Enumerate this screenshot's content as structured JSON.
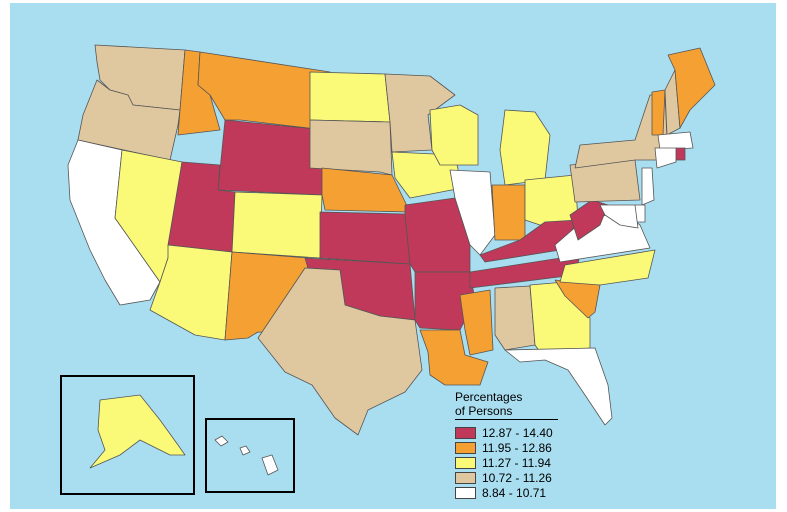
{
  "legend": {
    "title_line1": "Percentages",
    "title_line2": "of Persons",
    "classes": [
      {
        "label": "12.87 - 14.40",
        "color": "#c0395a"
      },
      {
        "label": "11.95 - 12.86",
        "color": "#f5a033"
      },
      {
        "label": "11.27 - 11.94",
        "color": "#fafa78"
      },
      {
        "label": "10.72 - 11.26",
        "color": "#dfc8a0"
      },
      {
        "label": "8.84 - 10.71",
        "color": "#ffffff"
      }
    ]
  },
  "colors": {
    "water": "#a9def0",
    "border": "#555555"
  },
  "states": [
    {
      "id": "WA",
      "class": 3
    },
    {
      "id": "OR",
      "class": 3
    },
    {
      "id": "CA",
      "class": 4
    },
    {
      "id": "NV",
      "class": 2
    },
    {
      "id": "ID",
      "class": 1
    },
    {
      "id": "MT",
      "class": 1
    },
    {
      "id": "WY",
      "class": 0
    },
    {
      "id": "UT",
      "class": 0
    },
    {
      "id": "AZ",
      "class": 2
    },
    {
      "id": "CO",
      "class": 2
    },
    {
      "id": "NM",
      "class": 1
    },
    {
      "id": "ND",
      "class": 2
    },
    {
      "id": "SD",
      "class": 3
    },
    {
      "id": "NE",
      "class": 1
    },
    {
      "id": "KS",
      "class": 0
    },
    {
      "id": "OK",
      "class": 0
    },
    {
      "id": "TX",
      "class": 3
    },
    {
      "id": "MN",
      "class": 3
    },
    {
      "id": "IA",
      "class": 2
    },
    {
      "id": "MO",
      "class": 0
    },
    {
      "id": "AR",
      "class": 0
    },
    {
      "id": "LA",
      "class": 1
    },
    {
      "id": "WI",
      "class": 2
    },
    {
      "id": "IL",
      "class": 4
    },
    {
      "id": "MI",
      "class": 2
    },
    {
      "id": "IN",
      "class": 1
    },
    {
      "id": "OH",
      "class": 2
    },
    {
      "id": "KY",
      "class": 0
    },
    {
      "id": "TN",
      "class": 0
    },
    {
      "id": "MS",
      "class": 1
    },
    {
      "id": "AL",
      "class": 3
    },
    {
      "id": "GA",
      "class": 2
    },
    {
      "id": "FL",
      "class": 4
    },
    {
      "id": "SC",
      "class": 1
    },
    {
      "id": "NC",
      "class": 2
    },
    {
      "id": "VA",
      "class": 4
    },
    {
      "id": "WV",
      "class": 0
    },
    {
      "id": "PA",
      "class": 3
    },
    {
      "id": "NY",
      "class": 3
    },
    {
      "id": "VT",
      "class": 1
    },
    {
      "id": "NH",
      "class": 3
    },
    {
      "id": "ME",
      "class": 1
    },
    {
      "id": "MA",
      "class": 4
    },
    {
      "id": "RI",
      "class": 0
    },
    {
      "id": "CT",
      "class": 4
    },
    {
      "id": "NJ",
      "class": 4
    },
    {
      "id": "DE",
      "class": 4
    },
    {
      "id": "MD",
      "class": 4
    },
    {
      "id": "AK",
      "class": 2
    },
    {
      "id": "HI",
      "class": 4
    }
  ]
}
